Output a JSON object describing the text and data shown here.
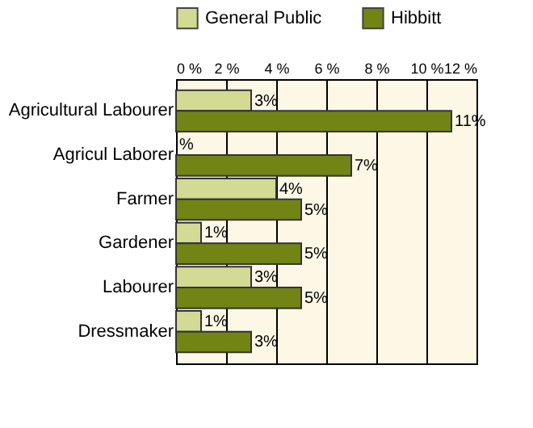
{
  "chart_data": {
    "type": "bar",
    "orientation": "horizontal",
    "categories": [
      "Agricultural Labourer",
      "Agricul Laborer",
      "Farmer",
      "Gardener",
      "Labourer",
      "Dressmaker"
    ],
    "series": [
      {
        "name": "General Public",
        "color": "#d3da93",
        "values": [
          3,
          0,
          4,
          1,
          3,
          1
        ],
        "value_labels": [
          "3%",
          "%",
          "4%",
          "1%",
          "3%",
          "1%"
        ]
      },
      {
        "name": "Hibbitt",
        "color": "#728414",
        "values": [
          11,
          7,
          5,
          5,
          5,
          3
        ],
        "value_labels": [
          "11%",
          "7%",
          "5%",
          "5%",
          "5%",
          "3%"
        ]
      }
    ],
    "xlim": [
      0,
      12
    ],
    "xticks": [
      {
        "value": 0,
        "label": "0 %"
      },
      {
        "value": 2,
        "label": "2 %"
      },
      {
        "value": 4,
        "label": "4 %"
      },
      {
        "value": 6,
        "label": "6 %"
      },
      {
        "value": 8,
        "label": "8 %"
      },
      {
        "value": 10,
        "label": "10 %"
      },
      {
        "value": 12,
        "label": "12 %"
      }
    ],
    "grid": "x",
    "legend": "top"
  }
}
